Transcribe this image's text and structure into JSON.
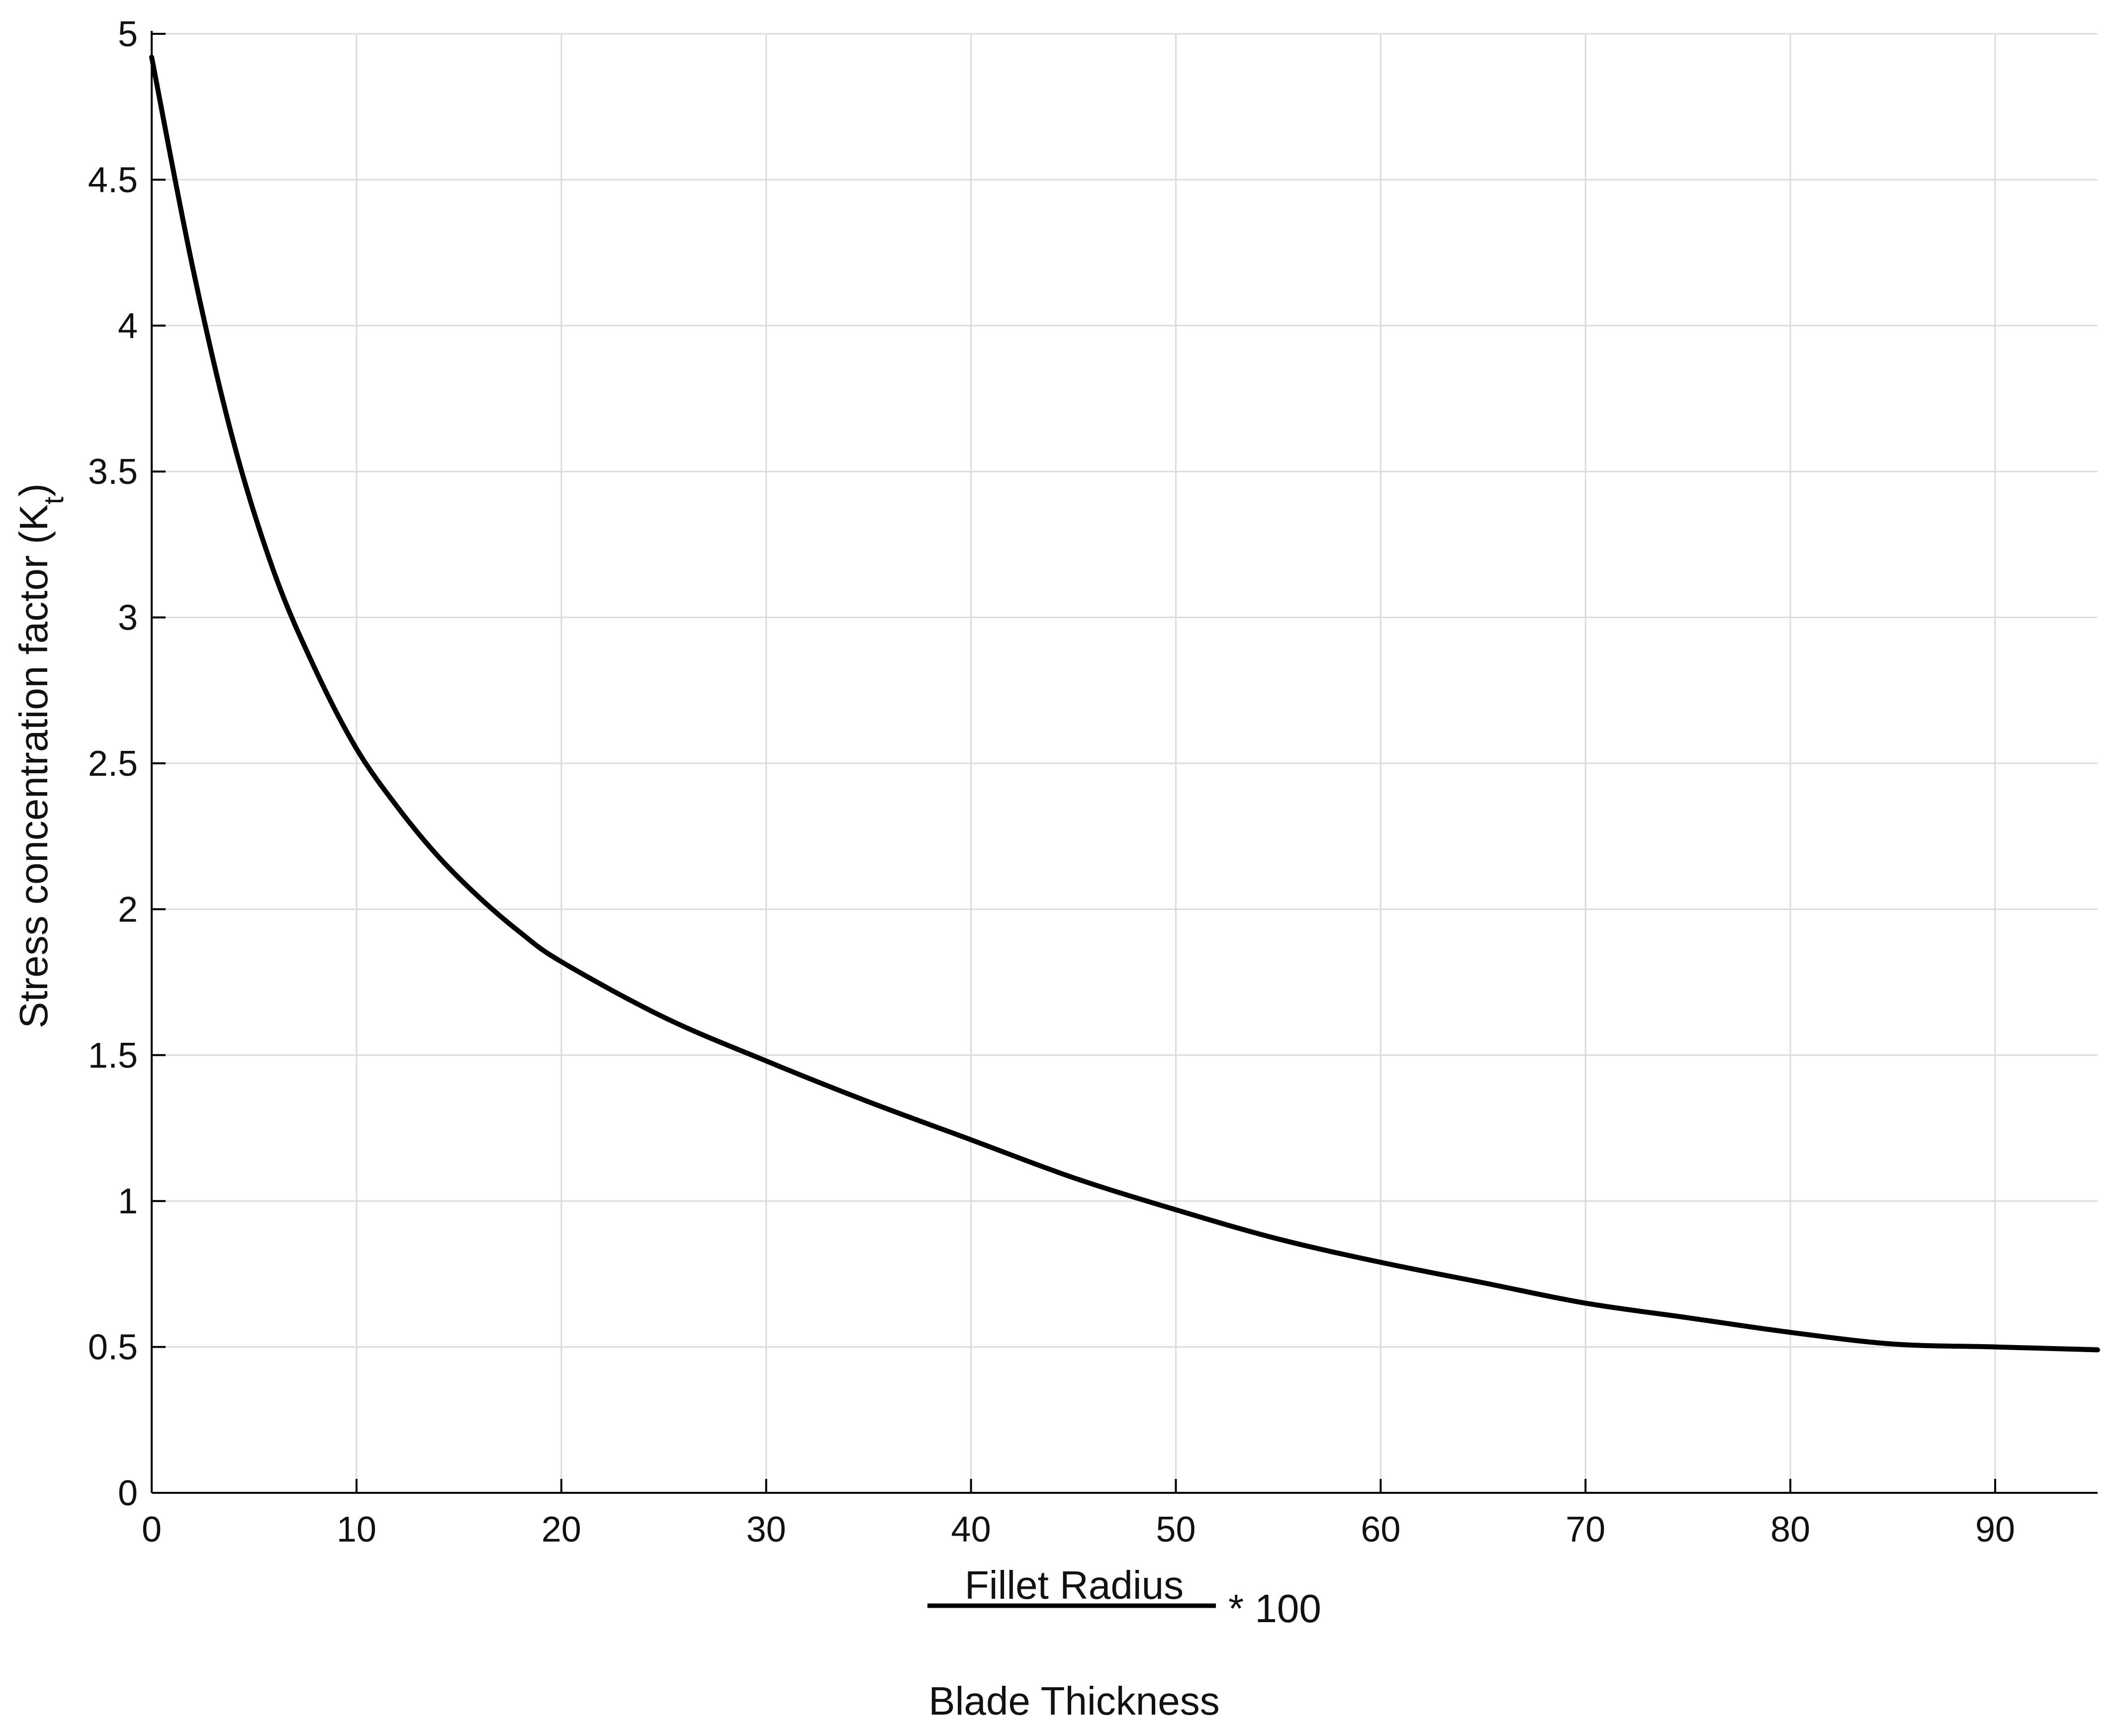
{
  "chart_data": {
    "type": "line",
    "title": "",
    "ylabel": "Stress concentration factor (K",
    "ylabel_subscript": "t",
    "ylabel_suffix": ")",
    "xlabel_numerator": "Fillet Radius",
    "xlabel_denominator": "Blade Thickness",
    "xlabel_multiplier": "* 100",
    "xlim": [
      0,
      95
    ],
    "ylim": [
      0,
      5
    ],
    "xticks": [
      0,
      10,
      20,
      30,
      40,
      50,
      60,
      70,
      80,
      90
    ],
    "xtick_labels": [
      "0",
      "10",
      "20",
      "30",
      "40",
      "50",
      "60",
      "70",
      "80",
      "90"
    ],
    "yticks": [
      0,
      0.5,
      1,
      1.5,
      2,
      2.5,
      3,
      3.5,
      4,
      4.5,
      5
    ],
    "ytick_labels": [
      "0",
      "0.5",
      "1",
      "1.5",
      "2",
      "2.5",
      "3",
      "3.5",
      "4",
      "4.5",
      "5"
    ],
    "grid": true,
    "legend": "none",
    "colors": {
      "series": "#000000",
      "grid": "#dcdcdc",
      "axis": "#000000"
    },
    "series": [
      {
        "x": [
          0,
          2,
          4,
          6,
          8,
          10,
          12,
          14,
          16,
          18,
          20,
          25,
          30,
          35,
          40,
          45,
          50,
          55,
          60,
          65,
          70,
          75,
          80,
          85,
          90,
          95
        ],
        "y": [
          4.92,
          4.2,
          3.6,
          3.15,
          2.82,
          2.55,
          2.35,
          2.18,
          2.04,
          1.92,
          1.82,
          1.63,
          1.48,
          1.34,
          1.21,
          1.08,
          0.97,
          0.87,
          0.79,
          0.72,
          0.65,
          0.6,
          0.55,
          0.51,
          0.5,
          0.49
        ]
      }
    ]
  }
}
